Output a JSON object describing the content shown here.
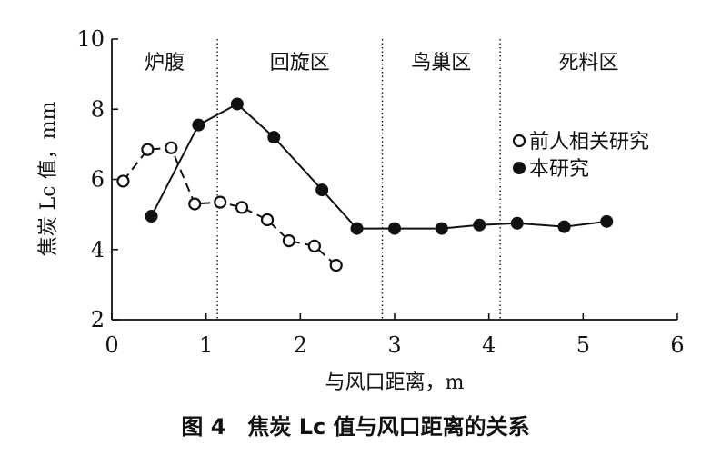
{
  "chart_data": {
    "type": "line",
    "title": "图 4　焦炭 Lc 值与风口距离的关系",
    "xlabel": "与风口距离，m",
    "ylabel": "焦炭 Lc 值，mm",
    "xlim": [
      0,
      6
    ],
    "ylim": [
      2,
      10
    ],
    "x_ticks": [
      0,
      1,
      2,
      3,
      4,
      5,
      6
    ],
    "y_ticks": [
      2,
      4,
      6,
      8,
      10
    ],
    "x_tick_labels": [
      "0",
      "1",
      "2",
      "3",
      "4",
      "5",
      "6"
    ],
    "y_tick_labels": [
      "2",
      "4",
      "6",
      "8",
      "10"
    ],
    "grid": false,
    "legend_position": "right",
    "zones": [
      {
        "label": "炉腹",
        "x_start": 0,
        "x_end": 1.12
      },
      {
        "label": "回旋区",
        "x_start": 1.12,
        "x_end": 2.87
      },
      {
        "label": "鸟巢区",
        "x_start": 2.87,
        "x_end": 4.12
      },
      {
        "label": "死料区",
        "x_start": 4.12,
        "x_end": 6
      }
    ],
    "zone_boundaries": [
      1.12,
      2.87,
      4.12
    ],
    "series": [
      {
        "name": "前人相关研究",
        "marker": "open-circle",
        "line_style": "dashed",
        "x": [
          0.12,
          0.38,
          0.63,
          0.88,
          1.15,
          1.38,
          1.65,
          1.88,
          2.15,
          2.38
        ],
        "y": [
          5.95,
          6.85,
          6.9,
          5.3,
          5.35,
          5.2,
          4.85,
          4.25,
          4.1,
          3.55
        ]
      },
      {
        "name": "本研究",
        "marker": "filled-circle",
        "line_style": "solid",
        "x": [
          0.42,
          0.92,
          1.33,
          1.72,
          2.23,
          2.6,
          3.0,
          3.5,
          3.9,
          4.3,
          4.8,
          5.25
        ],
        "y": [
          4.95,
          7.55,
          8.15,
          7.2,
          5.7,
          4.6,
          4.6,
          4.6,
          4.7,
          4.75,
          4.65,
          4.8
        ]
      }
    ]
  }
}
